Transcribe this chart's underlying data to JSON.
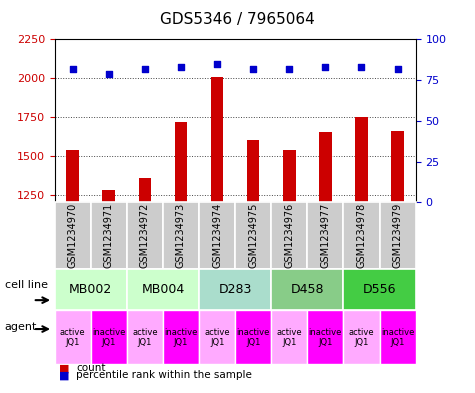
{
  "title": "GDS5346 / 7965064",
  "samples": [
    "GSM1234970",
    "GSM1234971",
    "GSM1234972",
    "GSM1234973",
    "GSM1234974",
    "GSM1234975",
    "GSM1234976",
    "GSM1234977",
    "GSM1234978",
    "GSM1234979"
  ],
  "counts": [
    1540,
    1280,
    1360,
    1720,
    2010,
    1600,
    1540,
    1650,
    1750,
    1660
  ],
  "percentiles": [
    82,
    79,
    82,
    83,
    85,
    82,
    82,
    83,
    83,
    82
  ],
  "ylim_left": [
    1200,
    2250
  ],
  "ylim_right": [
    0,
    100
  ],
  "yticks_left": [
    1250,
    1500,
    1750,
    2000,
    2250
  ],
  "yticks_right": [
    0,
    25,
    50,
    75,
    100
  ],
  "bar_color": "#cc0000",
  "dot_color": "#0000cc",
  "cell_lines": [
    {
      "label": "MB002",
      "span": [
        0,
        2
      ],
      "color": "#ccffcc"
    },
    {
      "label": "MB004",
      "span": [
        2,
        4
      ],
      "color": "#ccffcc"
    },
    {
      "label": "D283",
      "span": [
        4,
        6
      ],
      "color": "#aaddcc"
    },
    {
      "label": "D458",
      "span": [
        6,
        8
      ],
      "color": "#88cc88"
    },
    {
      "label": "D556",
      "span": [
        8,
        10
      ],
      "color": "#44cc44"
    }
  ],
  "agent_labels_line1": [
    "active",
    "inactive",
    "active",
    "inactive",
    "active",
    "inactive",
    "active",
    "inactive",
    "active",
    "inactive"
  ],
  "agent_labels_line2": [
    "JQ1",
    "JQ1",
    "JQ1",
    "JQ1",
    "JQ1",
    "JQ1",
    "JQ1",
    "JQ1",
    "JQ1",
    "JQ1"
  ],
  "agent_colors_active": "#ffaaff",
  "agent_colors_inactive": "#ff00ff",
  "sample_box_color": "#cccccc",
  "grid_color": "#444444",
  "bg_color": "#ffffff",
  "bar_width": 0.35,
  "title_fontsize": 11,
  "tick_fontsize": 8,
  "label_fontsize": 8,
  "sample_fontsize": 7,
  "cell_line_fontsize": 9,
  "agent_fontsize": 6
}
